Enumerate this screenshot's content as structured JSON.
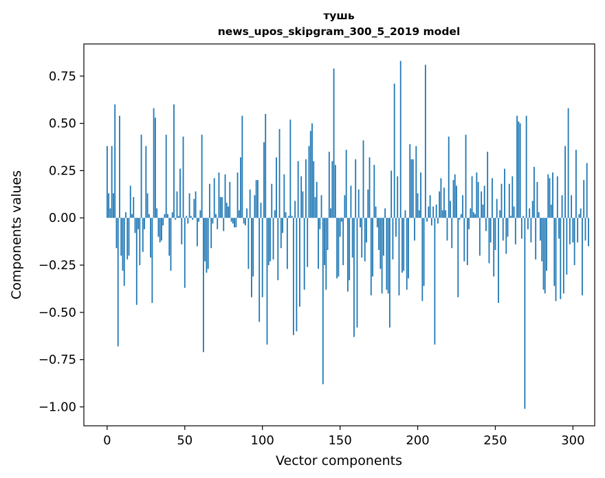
{
  "chart_data": {
    "type": "bar",
    "title": "тушь",
    "subtitle": "news_upos_skipgram_300_5_2019 model",
    "xlabel": "Vector components",
    "ylabel": "Components values",
    "xlim": [
      -15,
      314
    ],
    "ylim": [
      -1.1,
      0.92
    ],
    "xticks": [
      0,
      50,
      100,
      150,
      200,
      250,
      300
    ],
    "yticks": [
      -1.0,
      -0.75,
      -0.5,
      -0.25,
      0.0,
      0.25,
      0.5,
      0.75
    ],
    "ytick_labels": [
      "−1.00",
      "−0.75",
      "−0.50",
      "−0.25",
      "0.00",
      "0.25",
      "0.50",
      "0.75"
    ],
    "xtick_labels": [
      "0",
      "50",
      "100",
      "150",
      "200",
      "250",
      "300"
    ],
    "color": "#1f77b4",
    "values": [
      0.38,
      0.13,
      0.05,
      0.38,
      0.13,
      0.6,
      -0.16,
      -0.68,
      0.54,
      -0.2,
      -0.28,
      -0.36,
      0.03,
      -0.22,
      -0.2,
      0.17,
      0.02,
      0.11,
      -0.08,
      -0.46,
      -0.06,
      -0.25,
      0.44,
      -0.18,
      -0.06,
      0.38,
      0.13,
      0.02,
      -0.21,
      -0.45,
      0.58,
      0.53,
      0.05,
      -0.1,
      -0.13,
      -0.12,
      -0.04,
      0.02,
      0.44,
      0.02,
      -0.2,
      -0.28,
      0.03,
      0.6,
      -0.01,
      0.14,
      0.01,
      0.26,
      -0.14,
      0.43,
      -0.37,
      0.01,
      -0.03,
      0.13,
      0.01,
      -0.01,
      0.1,
      0.14,
      -0.15,
      -0.02,
      0.04,
      0.44,
      -0.71,
      -0.23,
      -0.29,
      -0.27,
      0.18,
      -0.16,
      -0.03,
      0.21,
      0.02,
      -0.06,
      0.24,
      0.11,
      0.11,
      -0.07,
      0.23,
      0.08,
      0.06,
      0.19,
      -0.02,
      -0.03,
      -0.05,
      -0.05,
      0.24,
      0.04,
      0.32,
      0.54,
      -0.03,
      -0.04,
      0.05,
      -0.27,
      0.15,
      -0.42,
      -0.31,
      0.12,
      0.2,
      0.2,
      -0.55,
      0.08,
      -0.42,
      0.4,
      0.55,
      -0.67,
      -0.25,
      -0.23,
      0.18,
      -0.22,
      0.04,
      0.32,
      -0.33,
      0.47,
      -0.16,
      -0.08,
      0.23,
      0.03,
      -0.27,
      0.01,
      0.52,
      0.01,
      -0.62,
      0.09,
      -0.6,
      0.3,
      -0.47,
      0.22,
      0.14,
      -0.38,
      0.31,
      -0.26,
      0.38,
      0.46,
      0.5,
      0.3,
      0.11,
      0.19,
      -0.27,
      -0.06,
      0.12,
      -0.88,
      -0.25,
      -0.38,
      -0.17,
      0.35,
      0.05,
      0.3,
      0.79,
      0.28,
      -0.32,
      -0.31,
      -0.1,
      -0.02,
      -0.25,
      0.12,
      0.36,
      -0.39,
      -0.33,
      0.17,
      -0.21,
      -0.63,
      0.31,
      -0.58,
      0.15,
      -0.05,
      -0.21,
      0.41,
      -0.23,
      -0.13,
      0.15,
      0.32,
      -0.41,
      -0.31,
      0.28,
      0.06,
      -0.05,
      -0.17,
      -0.27,
      -0.4,
      -0.2,
      0.05,
      -0.38,
      -0.4,
      -0.58,
      0.25,
      -0.22,
      0.71,
      -0.1,
      0.22,
      -0.41,
      0.83,
      -0.29,
      -0.28,
      0.04,
      -0.38,
      -0.32,
      0.39,
      0.31,
      0.31,
      -0.12,
      0.38,
      0.13,
      0.04,
      0.24,
      -0.44,
      -0.36,
      0.81,
      -0.02,
      0.06,
      0.12,
      -0.04,
      0.06,
      -0.67,
      0.07,
      -0.03,
      0.14,
      0.21,
      0.04,
      0.16,
      0.04,
      -0.12,
      0.43,
      0.09,
      -0.16,
      0.2,
      0.23,
      0.17,
      -0.42,
      -0.01,
      0.02,
      0.12,
      -0.23,
      0.44,
      -0.25,
      -0.06,
      0.05,
      0.22,
      0.03,
      0.02,
      0.24,
      0.19,
      -0.2,
      0.14,
      0.07,
      0.17,
      -0.07,
      0.35,
      -0.24,
      -0.13,
      0.21,
      -0.31,
      -0.17,
      0.1,
      -0.45,
      0.04,
      0.18,
      -0.12,
      0.26,
      -0.19,
      -0.1,
      0.18,
      0.01,
      0.22,
      0.06,
      -0.14,
      0.54,
      0.51,
      0.5,
      -0.11,
      0.01,
      -1.01,
      0.54,
      -0.06,
      0.05,
      -0.13,
      0.09,
      0.27,
      -0.22,
      0.19,
      0.03,
      -0.12,
      -0.23,
      -0.38,
      -0.4,
      -0.28,
      0.23,
      0.21,
      0.07,
      0.24,
      -0.36,
      -0.44,
      0.22,
      -0.11,
      -0.43,
      0.12,
      -0.4,
      0.38,
      -0.3,
      0.58,
      -0.14,
      0.12,
      -0.13,
      -0.25,
      0.36,
      -0.13,
      0.02,
      0.05,
      -0.41,
      0.2,
      -0.12,
      0.29,
      -0.15
    ]
  }
}
